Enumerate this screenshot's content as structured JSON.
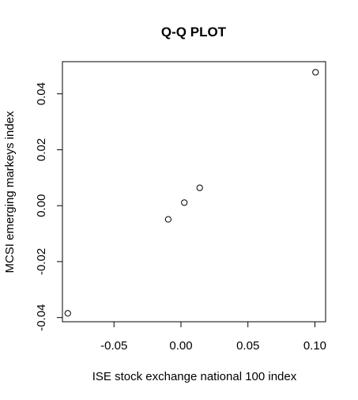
{
  "chart_data": {
    "type": "scatter",
    "title": "Q-Q PLOT",
    "xlabel": "ISE stock exchange national 100 index",
    "ylabel": "MCSI emerging markeys index",
    "xlim": [
      -0.0885,
      0.108
    ],
    "ylim": [
      -0.0415,
      0.0515
    ],
    "x_ticks": [
      -0.05,
      0.0,
      0.05,
      0.1
    ],
    "x_tick_labels": [
      "-0.05",
      "0.00",
      "0.05",
      "0.10"
    ],
    "y_ticks": [
      -0.04,
      -0.02,
      0.0,
      0.02,
      0.04
    ],
    "y_tick_labels": [
      "-0.04",
      "-0.02",
      "0.00",
      "0.02",
      "0.04"
    ],
    "grid": false,
    "marker": "open-circle",
    "points": [
      {
        "x": -0.0845,
        "y": -0.0385
      },
      {
        "x": -0.0095,
        "y": -0.0049
      },
      {
        "x": 0.0025,
        "y": 0.0011
      },
      {
        "x": 0.014,
        "y": 0.0064
      },
      {
        "x": 0.1005,
        "y": 0.0477
      }
    ]
  }
}
